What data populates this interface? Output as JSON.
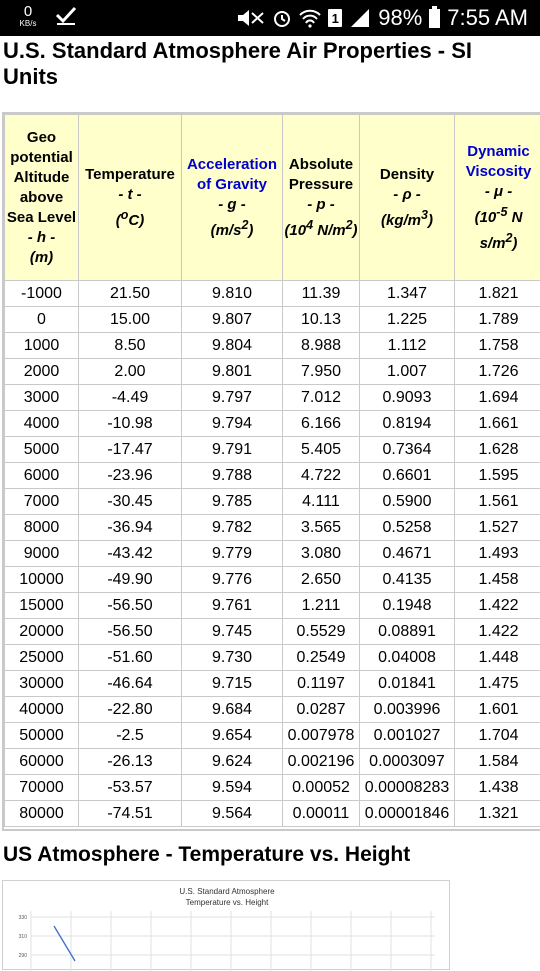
{
  "status_bar": {
    "speed_value": "0",
    "speed_unit": "KB/s",
    "sim": "1",
    "battery": "98%",
    "time": "7:55 AM"
  },
  "page_title": "U.S. Standard Atmosphere Air Properties - SI Units",
  "table": {
    "headers": [
      {
        "name": "Geo potential Altitude above Sea Level",
        "symbol": "- h -",
        "unit": "(m)"
      },
      {
        "name": "Temperature",
        "symbol": "- t -",
        "unit": "(oC)"
      },
      {
        "name": "Acceleration of Gravity",
        "symbol": "- g -",
        "unit": "(m/s2)"
      },
      {
        "name": "Absolute Pressure",
        "symbol": "- p -",
        "unit": "(104 N/m2)"
      },
      {
        "name": "Density",
        "symbol": "- ρ -",
        "unit": "(kg/m3)"
      },
      {
        "name": "Dynamic Viscosity",
        "symbol": "- μ -",
        "unit": "(10-5 N s/m2)"
      }
    ],
    "rows": [
      [
        "-1000",
        "21.50",
        "9.810",
        "11.39",
        "1.347",
        "1.821"
      ],
      [
        "0",
        "15.00",
        "9.807",
        "10.13",
        "1.225",
        "1.789"
      ],
      [
        "1000",
        "8.50",
        "9.804",
        "8.988",
        "1.112",
        "1.758"
      ],
      [
        "2000",
        "2.00",
        "9.801",
        "7.950",
        "1.007",
        "1.726"
      ],
      [
        "3000",
        "-4.49",
        "9.797",
        "7.012",
        "0.9093",
        "1.694"
      ],
      [
        "4000",
        "-10.98",
        "9.794",
        "6.166",
        "0.8194",
        "1.661"
      ],
      [
        "5000",
        "-17.47",
        "9.791",
        "5.405",
        "0.7364",
        "1.628"
      ],
      [
        "6000",
        "-23.96",
        "9.788",
        "4.722",
        "0.6601",
        "1.595"
      ],
      [
        "7000",
        "-30.45",
        "9.785",
        "4.111",
        "0.5900",
        "1.561"
      ],
      [
        "8000",
        "-36.94",
        "9.782",
        "3.565",
        "0.5258",
        "1.527"
      ],
      [
        "9000",
        "-43.42",
        "9.779",
        "3.080",
        "0.4671",
        "1.493"
      ],
      [
        "10000",
        "-49.90",
        "9.776",
        "2.650",
        "0.4135",
        "1.458"
      ],
      [
        "15000",
        "-56.50",
        "9.761",
        "1.211",
        "0.1948",
        "1.422"
      ],
      [
        "20000",
        "-56.50",
        "9.745",
        "0.5529",
        "0.08891",
        "1.422"
      ],
      [
        "25000",
        "-51.60",
        "9.730",
        "0.2549",
        "0.04008",
        "1.448"
      ],
      [
        "30000",
        "-46.64",
        "9.715",
        "0.1197",
        "0.01841",
        "1.475"
      ],
      [
        "40000",
        "-22.80",
        "9.684",
        "0.0287",
        "0.003996",
        "1.601"
      ],
      [
        "50000",
        "-2.5",
        "9.654",
        "0.007978",
        "0.001027",
        "1.704"
      ],
      [
        "60000",
        "-26.13",
        "9.624",
        "0.002196",
        "0.0003097",
        "1.584"
      ],
      [
        "70000",
        "-53.57",
        "9.594",
        "0.00052",
        "0.00008283",
        "1.438"
      ],
      [
        "80000",
        "-74.51",
        "9.564",
        "0.00011",
        "0.00001846",
        "1.321"
      ]
    ]
  },
  "section_heading": "US Atmosphere - Temperature vs. Height",
  "chart_preview": {
    "title_line1": "U.S. Standard Atmosphere",
    "title_line2": "Temperature vs. Height",
    "y_ticks": [
      "330",
      "310",
      "290"
    ]
  }
}
